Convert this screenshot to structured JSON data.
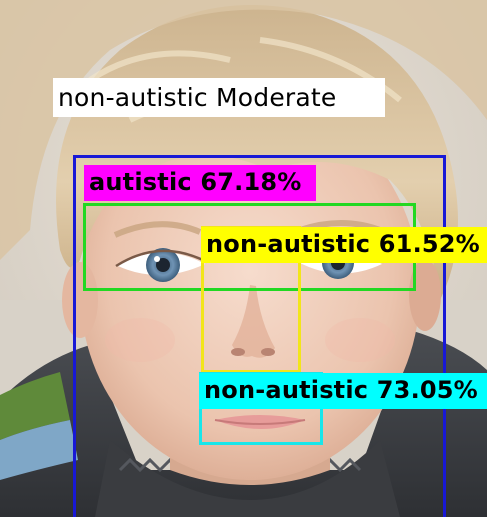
{
  "summary_label": "non-autistic Moderate",
  "detections": [
    {
      "label": "autistic 67.18%",
      "color": "#ff00ff"
    },
    {
      "label": "non-autistic 61.52%",
      "color": "#ffff00"
    },
    {
      "label": "non-autistic 73.05%",
      "color": "#00ffff"
    }
  ],
  "box_colors": {
    "face": "#1818d6",
    "eyes": "#22d822",
    "nose": "#f2e51a",
    "mouth": "#18e6ea"
  }
}
